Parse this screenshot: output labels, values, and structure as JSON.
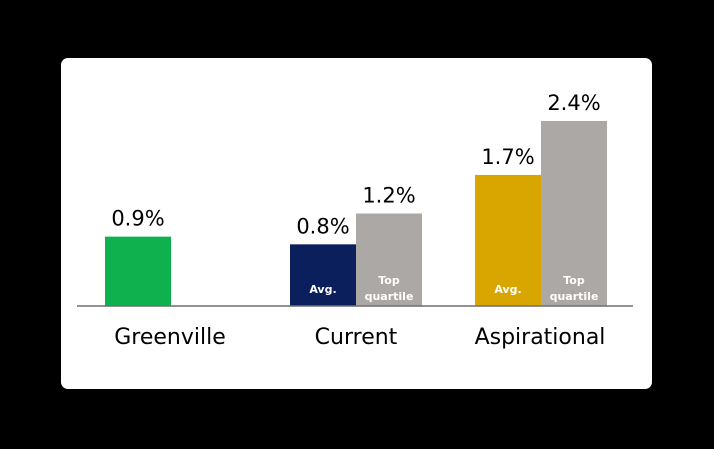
{
  "chart_data": {
    "type": "bar",
    "categories": [
      "Greenville",
      "Current",
      "Aspirational"
    ],
    "bars": [
      {
        "category": "Greenville",
        "value": 0.9,
        "label": "0.9%",
        "inner_label": [],
        "color": "#0fb04e"
      },
      {
        "category": "Current",
        "value": 0.8,
        "label": "0.8%",
        "inner_label": [
          "Avg."
        ],
        "color": "#0a1f5c"
      },
      {
        "category": "Current",
        "value": 1.2,
        "label": "1.2%",
        "inner_label": [
          "Top",
          "quartile"
        ],
        "color": "#aba8a6"
      },
      {
        "category": "Aspirational",
        "value": 1.7,
        "label": "1.7%",
        "inner_label": [
          "Avg."
        ],
        "color": "#d9a600"
      },
      {
        "category": "Aspirational",
        "value": 2.4,
        "label": "2.4%",
        "inner_label": [
          "Top",
          "quartile"
        ],
        "color": "#aba8a6"
      }
    ],
    "ylim": [
      0,
      2.4
    ],
    "grid": false,
    "colors": {
      "axis": "#6e6e6e",
      "background": "#ffffff"
    }
  }
}
